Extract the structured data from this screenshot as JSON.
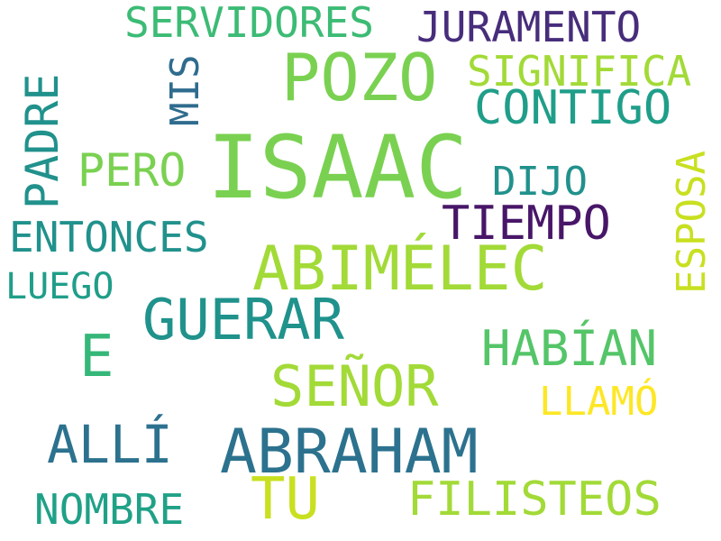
{
  "words": [
    {
      "text": "ISAAC",
      "color": "#7ad151"
    },
    {
      "text": "POZO",
      "color": "#7ad151"
    },
    {
      "text": "ABIMÉLEC",
      "color": "#a2da37"
    },
    {
      "text": "ABRAHAM",
      "color": "#2c728e"
    },
    {
      "text": "GUERAR",
      "color": "#20928c"
    },
    {
      "text": "SEÑOR",
      "color": "#a2da37"
    },
    {
      "text": "TU",
      "color": "#c8e020"
    },
    {
      "text": "HABÍAN",
      "color": "#54c568"
    },
    {
      "text": "TIEMPO",
      "color": "#481668"
    },
    {
      "text": "CONTIGO",
      "color": "#1f9e89"
    },
    {
      "text": "SERVIDORES",
      "color": "#3cbb75"
    },
    {
      "text": "JURAMENTO",
      "color": "#472d7b"
    },
    {
      "text": "SIGNIFICA",
      "color": "#a2da37"
    },
    {
      "text": "PADRE",
      "color": "#21918c"
    },
    {
      "text": "MIS",
      "color": "#2f6c8e"
    },
    {
      "text": "PERO",
      "color": "#7ad151"
    },
    {
      "text": "DIJO",
      "color": "#21918c"
    },
    {
      "text": "ESPOSA",
      "color": "#c8e020"
    },
    {
      "text": "ENTONCES",
      "color": "#21918c"
    },
    {
      "text": "LUEGO",
      "color": "#1f9e89"
    },
    {
      "text": "E",
      "color": "#35b779"
    },
    {
      "text": "LLAMÓ",
      "color": "#fde725"
    },
    {
      "text": "ALLÍ",
      "color": "#2c728e"
    },
    {
      "text": "NOMBRE",
      "color": "#1fa187"
    },
    {
      "text": "FILISTEOS",
      "color": "#a2da37"
    }
  ]
}
